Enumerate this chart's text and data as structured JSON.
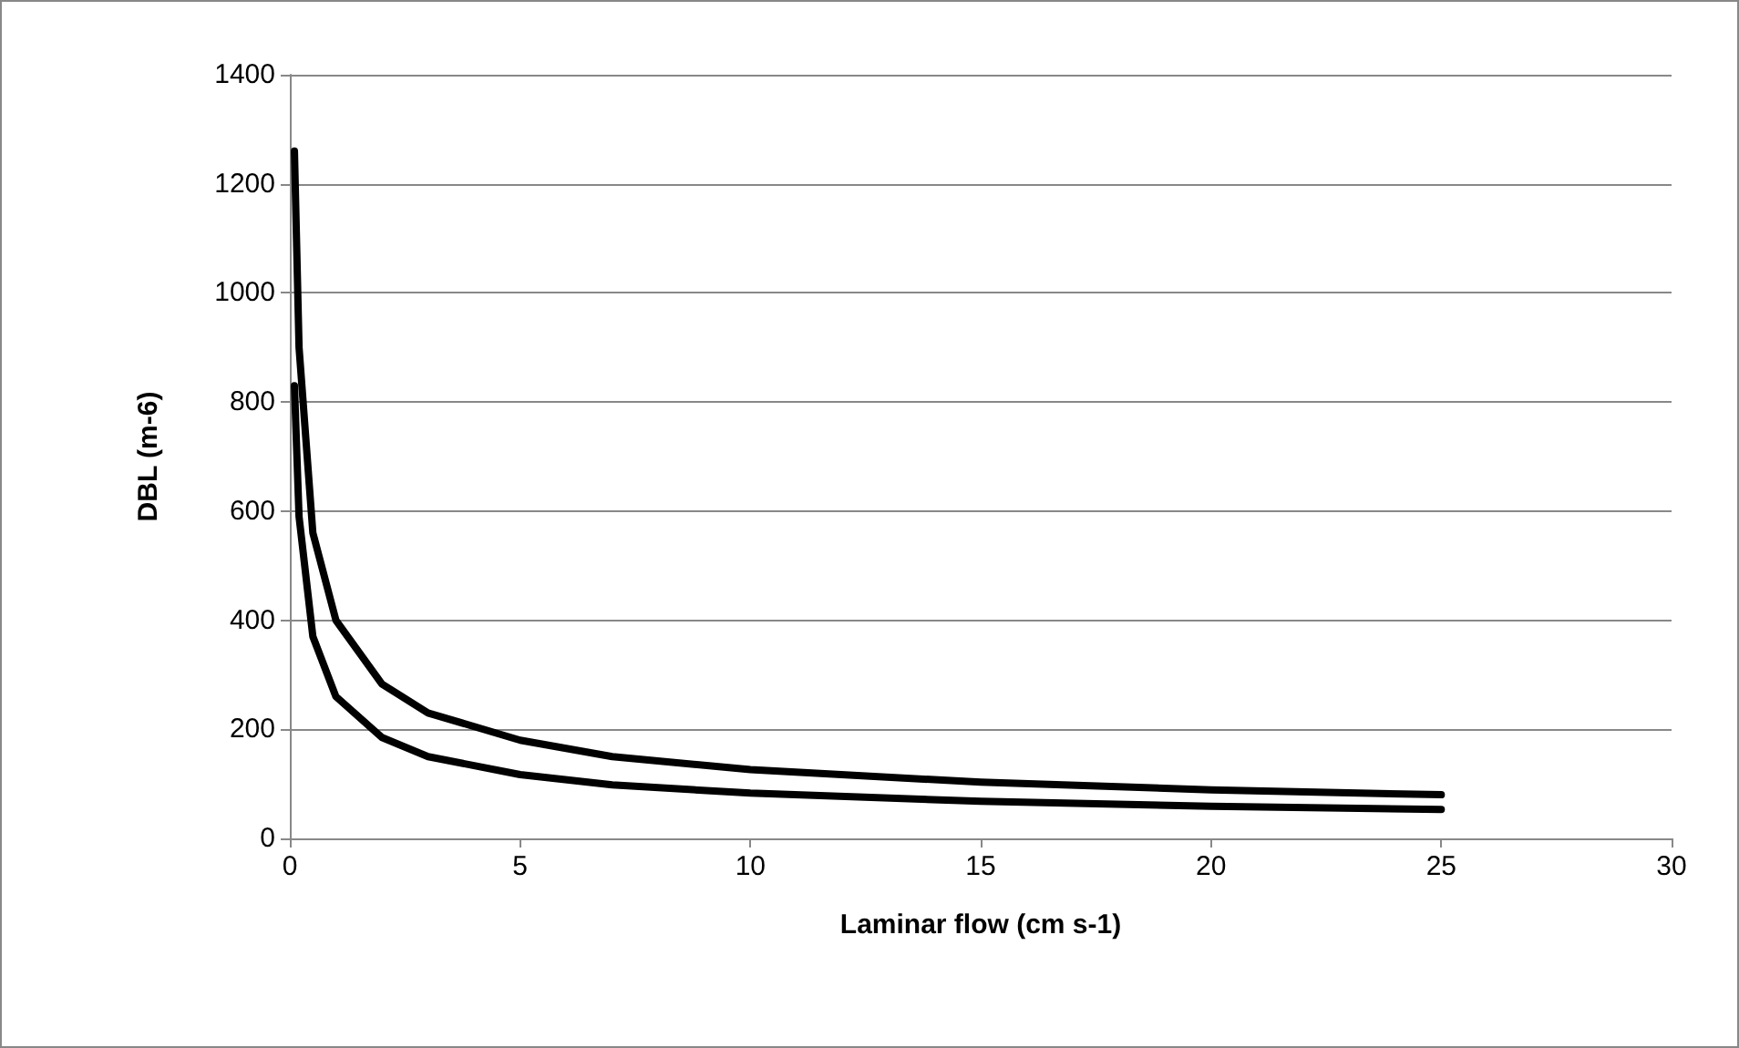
{
  "chart_data": {
    "type": "line",
    "xlabel": "Laminar flow (cm s-1)",
    "ylabel": "DBL (m-6)",
    "x": [
      0.1,
      0.2,
      0.5,
      1,
      2,
      3,
      5,
      7,
      10,
      15,
      20,
      25
    ],
    "series": [
      {
        "color": "#000000",
        "values": [
          1260,
          900,
          560,
          400,
          283,
          230,
          180,
          150,
          126,
          103,
          89,
          80
        ]
      },
      {
        "color": "#000000",
        "values": [
          830,
          590,
          370,
          260,
          185,
          150,
          117,
          98,
          83,
          68,
          59,
          53
        ]
      }
    ],
    "xlim": [
      0,
      30
    ],
    "xticks": [
      0,
      5,
      10,
      15,
      20,
      25,
      30
    ],
    "ylim": [
      0,
      1400
    ],
    "yticks": [
      0,
      200,
      400,
      600,
      800,
      1000,
      1200,
      1400
    ],
    "grid": "y",
    "marker": "none",
    "line_style": "solid"
  }
}
